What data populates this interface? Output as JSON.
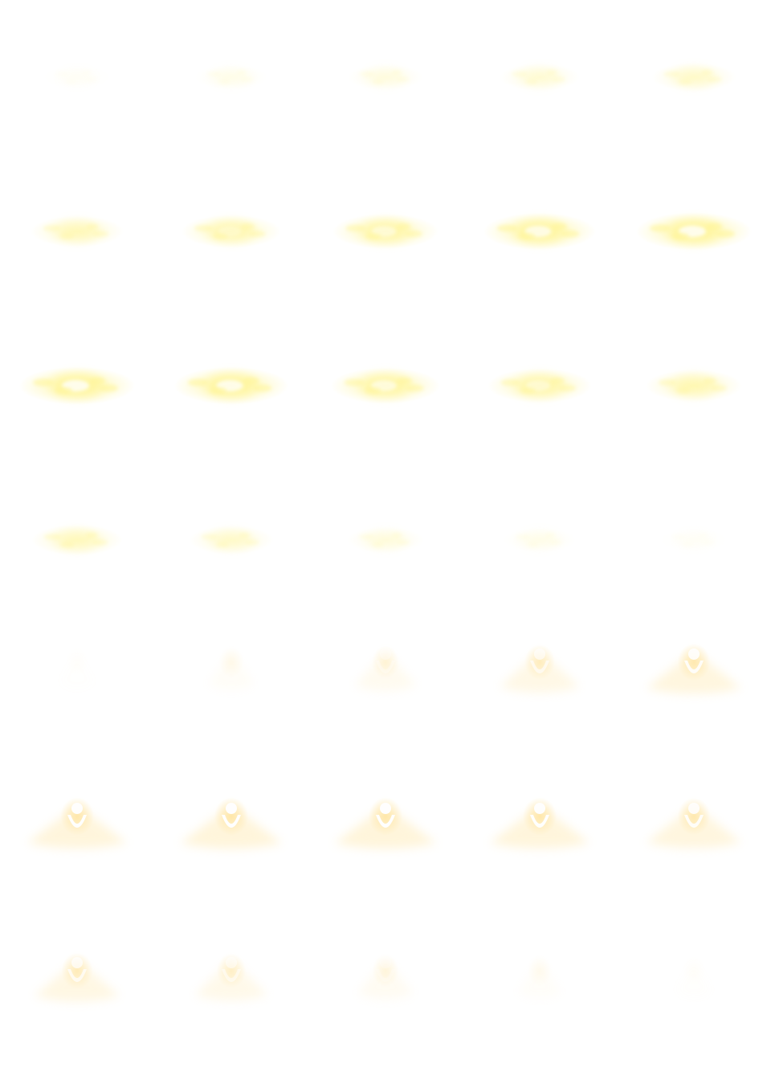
{
  "sheet": {
    "columns": 5,
    "rows": 7,
    "background": "#ffffff",
    "palette": {
      "glow": "#fff59a",
      "warm": "#ffe6a6",
      "core": "#ffffff"
    }
  },
  "frames": [
    {
      "row": 0,
      "col": 0,
      "effect": "cloud",
      "intensity": 0.05
    },
    {
      "row": 0,
      "col": 1,
      "effect": "cloud",
      "intensity": 0.12
    },
    {
      "row": 0,
      "col": 2,
      "effect": "cloud",
      "intensity": 0.18
    },
    {
      "row": 0,
      "col": 3,
      "effect": "cloud",
      "intensity": 0.25
    },
    {
      "row": 0,
      "col": 4,
      "effect": "cloud",
      "intensity": 0.32
    },
    {
      "row": 1,
      "col": 0,
      "effect": "cloud",
      "intensity": 0.45
    },
    {
      "row": 1,
      "col": 1,
      "effect": "cloud",
      "intensity": 0.55
    },
    {
      "row": 1,
      "col": 2,
      "effect": "cloud",
      "intensity": 0.65
    },
    {
      "row": 1,
      "col": 3,
      "effect": "cloud",
      "intensity": 0.75
    },
    {
      "row": 1,
      "col": 4,
      "effect": "cloud",
      "intensity": 0.8
    },
    {
      "row": 2,
      "col": 0,
      "effect": "cloud",
      "intensity": 0.8
    },
    {
      "row": 2,
      "col": 1,
      "effect": "cloud",
      "intensity": 0.78
    },
    {
      "row": 2,
      "col": 2,
      "effect": "cloud",
      "intensity": 0.7
    },
    {
      "row": 2,
      "col": 3,
      "effect": "cloud",
      "intensity": 0.62
    },
    {
      "row": 2,
      "col": 4,
      "effect": "cloud",
      "intensity": 0.5
    },
    {
      "row": 3,
      "col": 0,
      "effect": "cloud",
      "intensity": 0.42
    },
    {
      "row": 3,
      "col": 1,
      "effect": "cloud",
      "intensity": 0.32
    },
    {
      "row": 3,
      "col": 2,
      "effect": "cloud",
      "intensity": 0.2
    },
    {
      "row": 3,
      "col": 3,
      "effect": "cloud",
      "intensity": 0.12
    },
    {
      "row": 3,
      "col": 4,
      "effect": "cloud",
      "intensity": 0.05
    },
    {
      "row": 4,
      "col": 0,
      "effect": "emblem",
      "intensity": 0.03
    },
    {
      "row": 4,
      "col": 1,
      "effect": "emblem",
      "intensity": 0.15
    },
    {
      "row": 4,
      "col": 2,
      "effect": "emblem",
      "intensity": 0.3
    },
    {
      "row": 4,
      "col": 3,
      "effect": "emblem",
      "intensity": 0.5
    },
    {
      "row": 4,
      "col": 4,
      "effect": "emblem",
      "intensity": 0.65
    },
    {
      "row": 5,
      "col": 0,
      "effect": "emblem",
      "intensity": 0.7
    },
    {
      "row": 5,
      "col": 1,
      "effect": "emblem",
      "intensity": 0.72
    },
    {
      "row": 5,
      "col": 2,
      "effect": "emblem",
      "intensity": 0.72
    },
    {
      "row": 5,
      "col": 3,
      "effect": "emblem",
      "intensity": 0.7
    },
    {
      "row": 5,
      "col": 4,
      "effect": "emblem",
      "intensity": 0.65
    },
    {
      "row": 6,
      "col": 0,
      "effect": "emblem",
      "intensity": 0.55
    },
    {
      "row": 6,
      "col": 1,
      "effect": "emblem",
      "intensity": 0.42
    },
    {
      "row": 6,
      "col": 2,
      "effect": "emblem",
      "intensity": 0.25
    },
    {
      "row": 6,
      "col": 3,
      "effect": "emblem",
      "intensity": 0.12
    },
    {
      "row": 6,
      "col": 4,
      "effect": "emblem",
      "intensity": 0.04
    }
  ]
}
